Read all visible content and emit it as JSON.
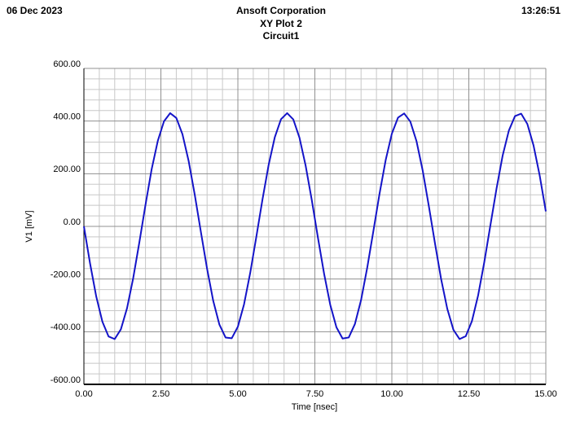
{
  "header": {
    "date": "06 Dec 2023",
    "company": "Ansoft Corporation",
    "time": "13:26:51"
  },
  "chart_data": {
    "type": "line",
    "title": "XY Plot 2",
    "subtitle": "Circuit1",
    "x_label": "Time [nsec]",
    "y_label": "V1 [mV]",
    "x": [
      0,
      0.2,
      0.4,
      0.6,
      0.8,
      1.0,
      1.2,
      1.4,
      1.6,
      1.8,
      2.0,
      2.2,
      2.4,
      2.6,
      2.8,
      3.0,
      3.2,
      3.4,
      3.6,
      3.8,
      4.0,
      4.2,
      4.4,
      4.6,
      4.8,
      5.0,
      5.2,
      5.4,
      5.6,
      5.8,
      6.0,
      6.2,
      6.4,
      6.6,
      6.8,
      7.0,
      7.2,
      7.4,
      7.6,
      7.8,
      8.0,
      8.2,
      8.4,
      8.6,
      8.8,
      9.0,
      9.2,
      9.4,
      9.6,
      9.8,
      10.0,
      10.2,
      10.4,
      10.6,
      10.8,
      11.0,
      11.2,
      11.4,
      11.6,
      11.8,
      12.0,
      12.2,
      12.4,
      12.6,
      12.8,
      13.0,
      13.2,
      13.4,
      13.6,
      13.8,
      14.0,
      14.2,
      14.4,
      14.6,
      14.8,
      15.0
    ],
    "series": [
      {
        "name": "V1",
        "color": "#1414c8",
        "values": [
          0,
          -141,
          -266,
          -362,
          -418,
          -428,
          -391,
          -311,
          -197,
          -61,
          82,
          217,
          325,
          399,
          430,
          412,
          350,
          249,
          120,
          -22,
          -161,
          -283,
          -373,
          -422,
          -425,
          -381,
          -296,
          -177,
          -39,
          103,
          234,
          339,
          407,
          430,
          406,
          337,
          231,
          100,
          -43,
          -180,
          -298,
          -383,
          -426,
          -422,
          -371,
          -280,
          -157,
          -18,
          124,
          252,
          352,
          413,
          429,
          398,
          324,
          213,
          78,
          -64,
          -200,
          -313,
          -393,
          -428,
          -417,
          -360,
          -263,
          -137,
          4,
          144,
          270,
          364,
          419,
          428,
          389,
          308,
          194,
          57
        ]
      }
    ],
    "xlim": [
      0,
      15
    ],
    "ylim": [
      -600,
      600
    ],
    "xticks": [
      {
        "value": 0,
        "label": "0.00"
      },
      {
        "value": 2.5,
        "label": "2.50"
      },
      {
        "value": 5,
        "label": "5.00"
      },
      {
        "value": 7.5,
        "label": "7.50"
      },
      {
        "value": 10,
        "label": "10.00"
      },
      {
        "value": 12.5,
        "label": "12.50"
      },
      {
        "value": 15,
        "label": "15.00"
      }
    ],
    "yticks": [
      {
        "value": -600,
        "label": "-600.00"
      },
      {
        "value": -400,
        "label": "-400.00"
      },
      {
        "value": -200,
        "label": "-200.00"
      },
      {
        "value": 0,
        "label": "0.00"
      },
      {
        "value": 200,
        "label": "200.00"
      },
      {
        "value": 400,
        "label": "400.00"
      },
      {
        "value": 600,
        "label": "600.00"
      }
    ],
    "grid": true
  }
}
